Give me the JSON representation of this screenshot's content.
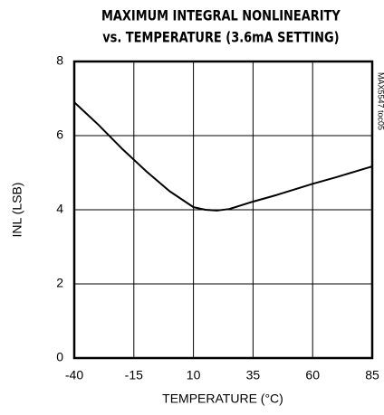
{
  "chart_data": {
    "type": "line",
    "title": [
      "MAXIMUM INTEGRAL NONLINEARITY",
      "vs. TEMPERATURE (3.6mA SETTING)"
    ],
    "note": "MAX5547 toc05",
    "x_label": "TEMPERATURE (°C)",
    "y_label": "INL (LSB)",
    "x": [
      -40,
      -30,
      -20,
      -10,
      0,
      10,
      15,
      20,
      25,
      35,
      45,
      60,
      70,
      85
    ],
    "series": [
      {
        "name": "INL",
        "color": "#000000",
        "values": [
          6.9,
          6.3,
          5.65,
          5.05,
          4.5,
          4.07,
          4.0,
          3.98,
          4.02,
          4.22,
          4.4,
          4.7,
          4.88,
          5.17
        ]
      }
    ],
    "xlim": [
      -40,
      85
    ],
    "xticks": [
      -40,
      -15,
      10,
      35,
      60,
      85
    ],
    "ylim": [
      0,
      8
    ],
    "yticks": [
      0,
      2,
      4,
      6,
      8
    ],
    "grid": true
  }
}
